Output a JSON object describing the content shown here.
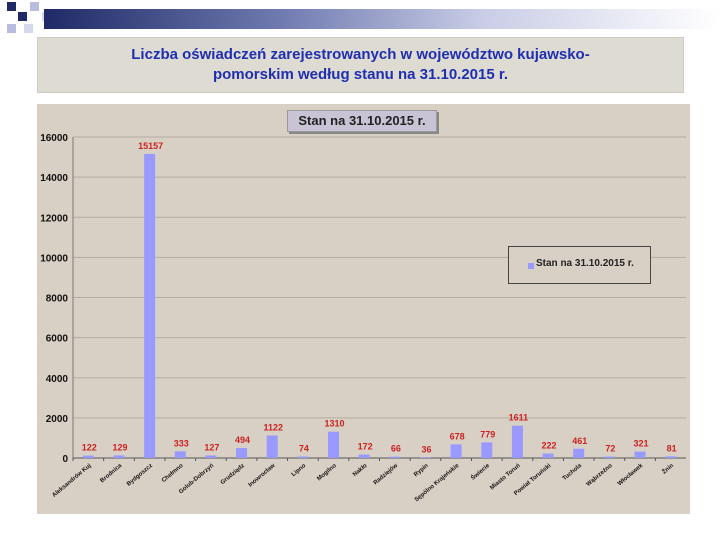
{
  "slide": {
    "title": "Liczba oświadczeń zarejestrowanych w województwo kujawsko-\npomorskim według stanu na 31.10.2015 r.",
    "colors": {
      "accent": "#1f2fb0",
      "bar": "#9999ff",
      "label": "#cc2222",
      "plot_bg": "#d8d0c4"
    }
  },
  "chart_data": {
    "type": "bar",
    "title": "Stan na 31.10.2015 r.",
    "legend": {
      "label": "Stan na 31.10.2015 r.",
      "placement": "right"
    },
    "ylim": [
      0,
      16000
    ],
    "yticks": [
      0,
      2000,
      4000,
      6000,
      8000,
      10000,
      12000,
      14000,
      16000
    ],
    "grid": true,
    "categories": [
      "Aleksandrów Kuj",
      "Brodnica",
      "Bydgoszcz",
      "Chełmno",
      "Golub-Dobrzyń",
      "Grudziądz",
      "Inowrocław",
      "Lipno",
      "Mogilno",
      "Nakło",
      "Radziejów",
      "Rypin",
      "Sępólno Krajeńskie",
      "Świecie",
      "Miasto Toruń",
      "Powiat Toruński",
      "Tuchola",
      "Wąbrzeźno",
      "Włocławek",
      "Żnin"
    ],
    "series": [
      {
        "name": "Stan na 31.10.2015 r.",
        "values": [
          122,
          129,
          15157,
          333,
          127,
          494,
          1122,
          74,
          1310,
          172,
          66,
          36,
          678,
          779,
          1611,
          222,
          461,
          72,
          321,
          81
        ]
      }
    ]
  }
}
